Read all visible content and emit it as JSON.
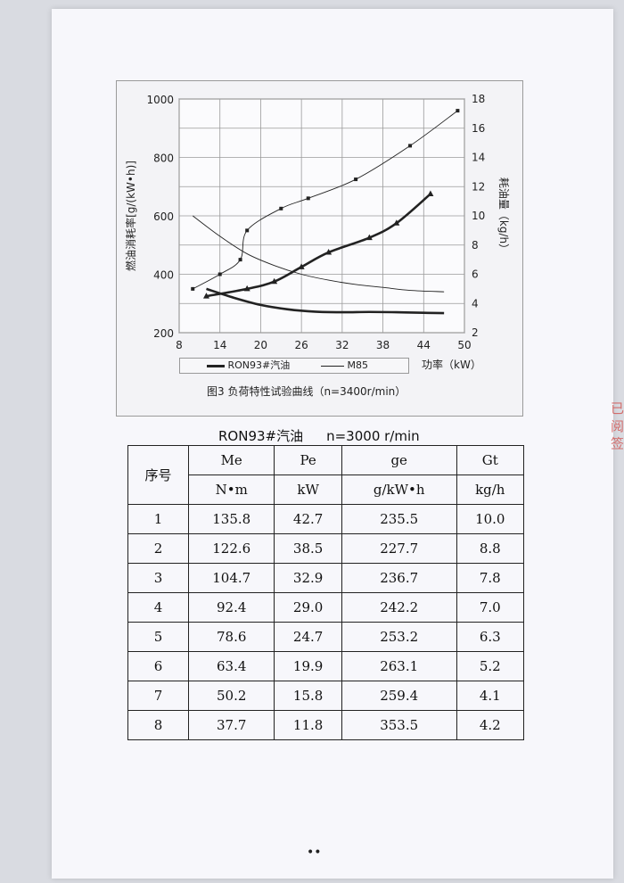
{
  "chart_data": {
    "type": "line",
    "title": "图3 负荷特性试验曲线（n=3400r/min）",
    "xlabel": "功率（kW）",
    "ylabel_left": "燃油消耗率[g/(kW•h)]",
    "ylabel_right": "耗油量（kg/h）",
    "x_ticks": [
      "8",
      "14",
      "20",
      "26",
      "32",
      "38",
      "44",
      "50"
    ],
    "xlim": [
      8,
      50
    ],
    "y_left_ticks": [
      "200",
      "400",
      "600",
      "800",
      "1000"
    ],
    "y_left_lim": [
      200,
      1000
    ],
    "y_right_ticks": [
      "2",
      "4",
      "6",
      "8",
      "10",
      "12",
      "14",
      "16",
      "18"
    ],
    "y_right_lim": [
      2,
      18
    ],
    "grid": true,
    "legend": "bottom",
    "legend_entries": [
      "RON93#汽油",
      "M85"
    ],
    "series": [
      {
        "name": "RON93#汽油",
        "axis": "left",
        "style": "thick",
        "x": [
          12,
          16,
          20,
          24,
          28,
          32,
          36,
          40,
          44,
          47
        ],
        "y": [
          350,
          320,
          295,
          280,
          272,
          270,
          271,
          270,
          268,
          267
        ]
      },
      {
        "name": "M85",
        "axis": "left",
        "style": "thin",
        "x": [
          10,
          14,
          18,
          22,
          26,
          30,
          34,
          38,
          42,
          47
        ],
        "y": [
          600,
          530,
          470,
          430,
          400,
          380,
          365,
          355,
          345,
          340
        ]
      },
      {
        "name": "RON93#汽油",
        "axis": "right",
        "style": "thick-triangle",
        "x": [
          12,
          18,
          22,
          26,
          30,
          36,
          40,
          45
        ],
        "y": [
          4.5,
          5.0,
          5.5,
          6.5,
          7.5,
          8.5,
          9.5,
          11.5
        ]
      },
      {
        "name": "M85",
        "axis": "right",
        "style": "thin-square",
        "x": [
          10,
          14,
          17,
          18,
          23,
          27,
          34,
          42,
          49
        ],
        "y": [
          5.0,
          6.0,
          7.0,
          9.0,
          10.5,
          11.2,
          12.5,
          14.8,
          17.2
        ]
      }
    ]
  },
  "table": {
    "title_fuel": "RON93#汽油",
    "title_speed": "n=3000 r/min",
    "headers": [
      "序号",
      "Me",
      "Pe",
      "ge",
      "Gt"
    ],
    "units": [
      "",
      "N•m",
      "kW",
      "g/kW•h",
      "kg/h"
    ],
    "rows": [
      [
        "1",
        "135.8",
        "42.7",
        "235.5",
        "10.0"
      ],
      [
        "2",
        "122.6",
        "38.5",
        "227.7",
        "8.8"
      ],
      [
        "3",
        "104.7",
        "32.9",
        "236.7",
        "7.8"
      ],
      [
        "4",
        "92.4",
        "29.0",
        "242.2",
        "7.0"
      ],
      [
        "5",
        "78.6",
        "24.7",
        "253.2",
        "6.3"
      ],
      [
        "6",
        "63.4",
        "19.9",
        "263.1",
        "5.2"
      ],
      [
        "7",
        "50.2",
        "15.8",
        "259.4",
        "4.1"
      ],
      [
        "8",
        "37.7",
        "11.8",
        "353.5",
        "4.2"
      ]
    ]
  },
  "footer": "••",
  "colors": {
    "ink": "#222222",
    "stamp": "#d2524f"
  }
}
